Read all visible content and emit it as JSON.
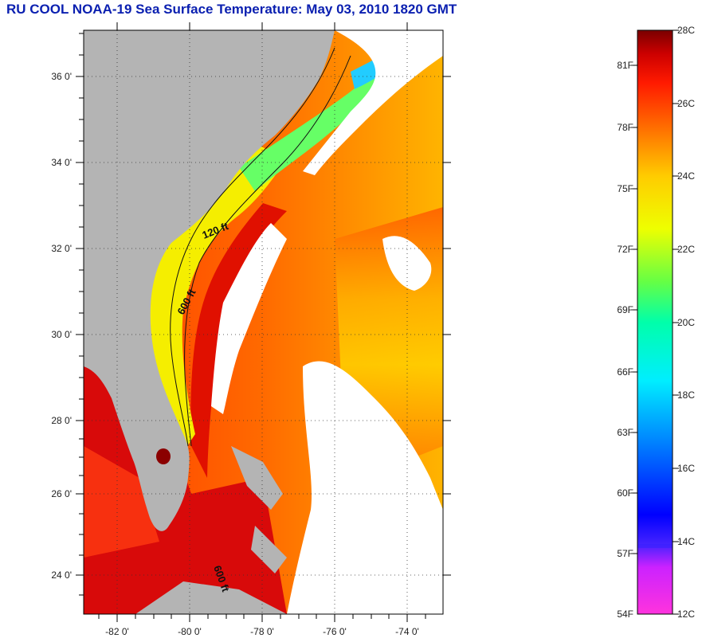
{
  "title": "RU COOL  NOAA-19  Sea Surface Temperature:  May 03, 2010 1820 GMT",
  "map": {
    "lat_ticks": [
      "36 0'",
      "34 0'",
      "32 0'",
      "30 0'",
      "28 0'",
      "26 0'",
      "24 0'"
    ],
    "lon_ticks": [
      "-82 0'",
      "-80 0'",
      "-78 0'",
      "-76 0'",
      "-74 0'"
    ],
    "contour_labels": [
      "120 ft",
      "600 ft",
      "600 ft"
    ],
    "colors": {
      "land": "#b4b4b4",
      "cloud": "#ffffff",
      "grid": "#333333"
    }
  },
  "colorbar": {
    "fahrenheit": [
      "81F",
      "78F",
      "75F",
      "72F",
      "69F",
      "66F",
      "63F",
      "60F",
      "57F",
      "54F"
    ],
    "celsius": [
      "28C",
      "26C",
      "24C",
      "22C",
      "20C",
      "18C",
      "16C",
      "14C",
      "12C"
    ],
    "range_c": [
      12,
      28
    ]
  }
}
